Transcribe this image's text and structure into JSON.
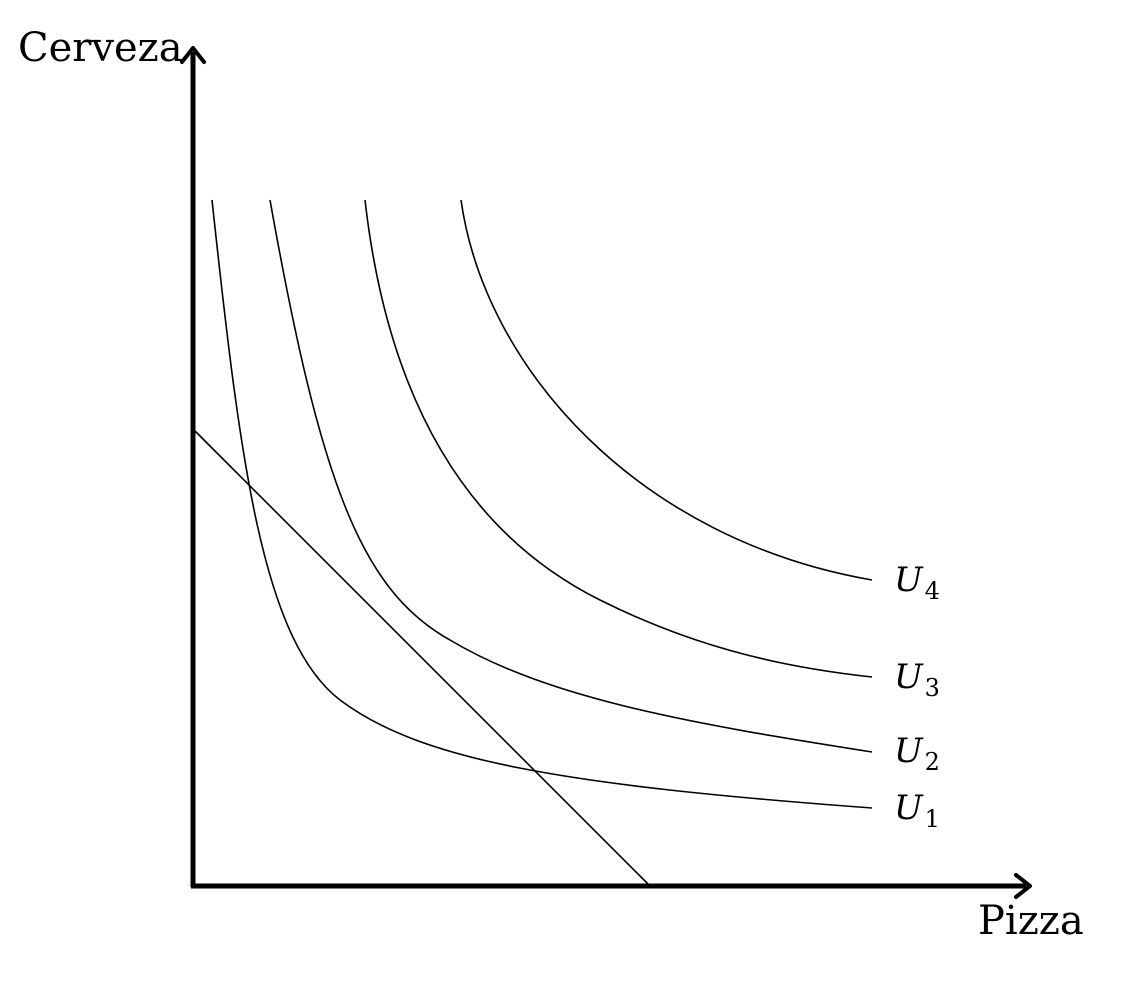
{
  "axes": {
    "y_label": "Cerveza",
    "x_label": "Pizza"
  },
  "curves": [
    {
      "id": "u1",
      "letter": "U",
      "subscript": "1"
    },
    {
      "id": "u2",
      "letter": "U",
      "subscript": "2"
    },
    {
      "id": "u3",
      "letter": "U",
      "subscript": "3"
    },
    {
      "id": "u4",
      "letter": "U",
      "subscript": "4"
    }
  ],
  "colors": {
    "stroke": "#000000",
    "background": "#ffffff"
  }
}
